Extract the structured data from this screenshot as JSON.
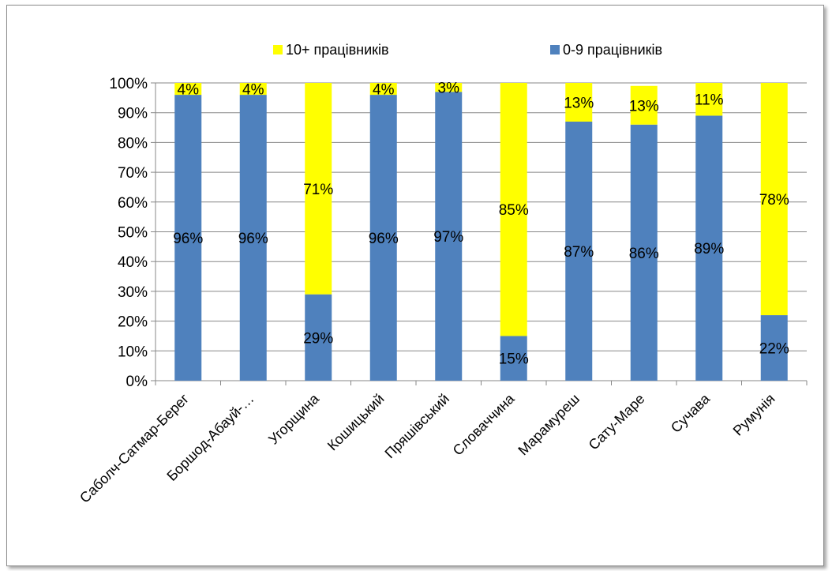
{
  "chart_data": {
    "type": "bar",
    "stacked": true,
    "categories": [
      "Саболч-Сатмар-Берег",
      "Боршод-Абауй-…",
      "Угорщина",
      "Кошицький",
      "Пряшівський",
      "Словаччина",
      "Марамуреш",
      "Сату-Маре",
      "Сучава",
      "Румунія"
    ],
    "series": [
      {
        "name": "0-9 працівників",
        "values": [
          96,
          96,
          29,
          96,
          97,
          15,
          87,
          86,
          89,
          22
        ],
        "labels": [
          "96%",
          "96%",
          "29%",
          "96%",
          "97%",
          "15%",
          "87%",
          "86%",
          "89%",
          "22%"
        ],
        "color": "#4f81bd"
      },
      {
        "name": "10+ працівників",
        "values": [
          4,
          4,
          71,
          4,
          3,
          85,
          13,
          13,
          11,
          78
        ],
        "labels": [
          "4%",
          "4%",
          "71%",
          "4%",
          "3%",
          "85%",
          "13%",
          "13%",
          "11%",
          "78%"
        ],
        "color": "#ffff00"
      }
    ],
    "yticks": [
      "0%",
      "10%",
      "20%",
      "30%",
      "40%",
      "50%",
      "60%",
      "70%",
      "80%",
      "90%",
      "100%"
    ],
    "ylim": [
      0,
      100
    ],
    "grid": true,
    "legend_position": "top",
    "legend_order": [
      "10+ працівників",
      "0-9 працівників"
    ]
  }
}
